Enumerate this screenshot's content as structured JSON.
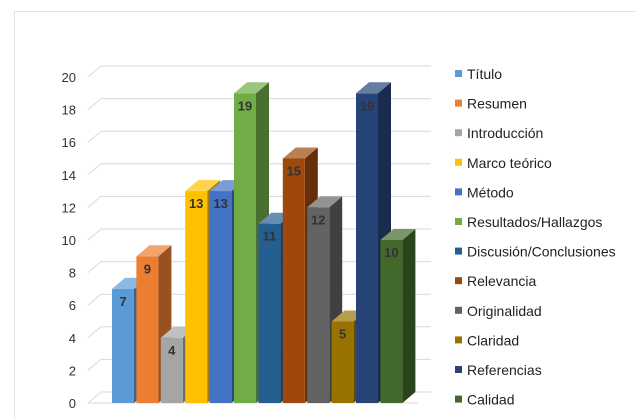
{
  "chart_data": {
    "type": "bar",
    "title": "",
    "xlabel": "",
    "ylabel": "",
    "ylim": [
      0,
      20
    ],
    "y_ticks": [
      "0",
      "2",
      "4",
      "6",
      "8",
      "10",
      "12",
      "14",
      "16",
      "18",
      "20"
    ],
    "grid": true,
    "legend_placement": "right",
    "style": "3d",
    "series": [
      {
        "name": "Título",
        "value": 7,
        "color": "#5b9bd5"
      },
      {
        "name": "Resumen",
        "value": 9,
        "color": "#ed7d31"
      },
      {
        "name": "Introducción",
        "value": 4,
        "color": "#a5a5a5"
      },
      {
        "name": "Marco teórico",
        "value": 13,
        "color": "#ffc000"
      },
      {
        "name": "Método",
        "value": 13,
        "color": "#4472c4"
      },
      {
        "name": "Resultados/Hallazgos",
        "value": 19,
        "color": "#70ad47"
      },
      {
        "name": "Discusión/Conclusiones",
        "value": 11,
        "color": "#255e91"
      },
      {
        "name": "Relevancia",
        "value": 15,
        "color": "#9e480e"
      },
      {
        "name": "Originalidad",
        "value": 12,
        "color": "#636363"
      },
      {
        "name": "Claridad",
        "value": 5,
        "color": "#997300"
      },
      {
        "name": "Referencias",
        "value": 19,
        "color": "#264478"
      },
      {
        "name": "Calidad",
        "value": 10,
        "color": "#43682b"
      }
    ]
  }
}
